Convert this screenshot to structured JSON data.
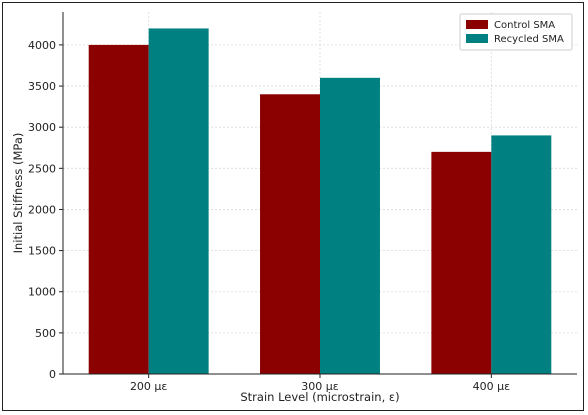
{
  "chart_data": {
    "type": "bar",
    "categories": [
      "200 με",
      "300 με",
      "400 με"
    ],
    "series": [
      {
        "name": "Control SMA",
        "values": [
          4000,
          3400,
          2700
        ],
        "color": "#8b0000"
      },
      {
        "name": "Recycled SMA",
        "values": [
          4200,
          3600,
          2900
        ],
        "color": "#008080"
      }
    ],
    "xlabel": "Strain Level (microstrain, ε)",
    "ylabel": "Initial Stiffness (MPa)",
    "ylim": [
      0,
      4400
    ],
    "yticks": [
      0,
      500,
      1000,
      1500,
      2000,
      2500,
      3000,
      3500,
      4000
    ],
    "grid": true,
    "legend_position": "top-right"
  }
}
